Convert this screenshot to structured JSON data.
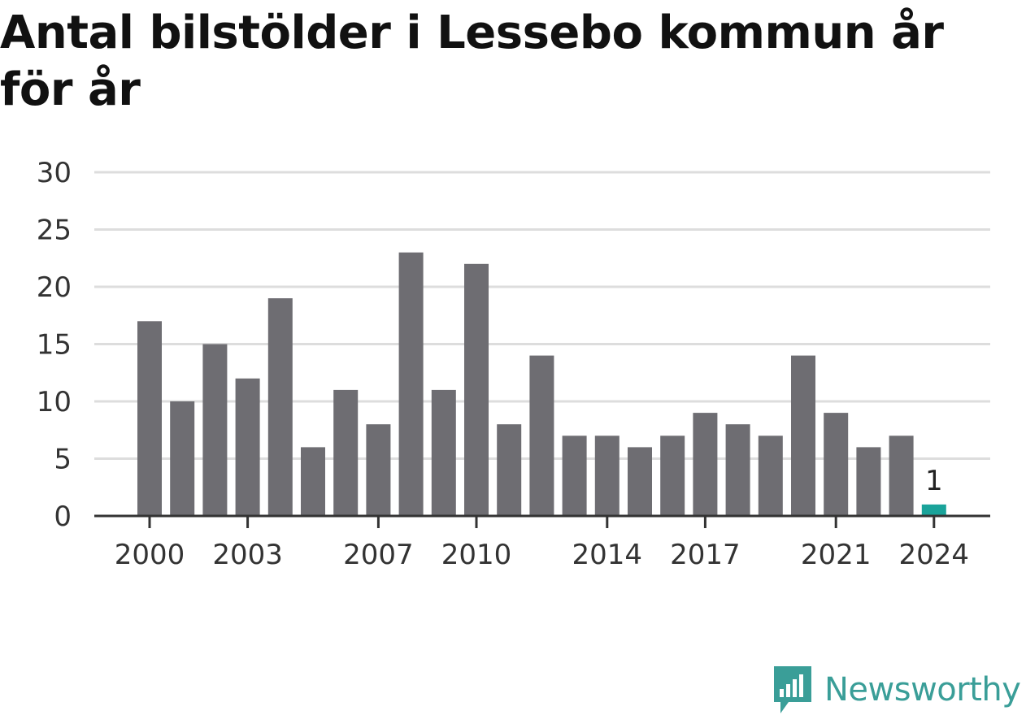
{
  "chart_data": {
    "type": "bar",
    "title": "Antal bilstölder i Lessebo kommun år för år",
    "years": [
      2000,
      2001,
      2002,
      2003,
      2004,
      2005,
      2006,
      2007,
      2008,
      2009,
      2010,
      2011,
      2012,
      2013,
      2014,
      2015,
      2016,
      2017,
      2018,
      2019,
      2020,
      2021,
      2022,
      2023,
      2024
    ],
    "values": [
      17,
      10,
      15,
      12,
      19,
      6,
      11,
      8,
      23,
      11,
      22,
      8,
      14,
      7,
      7,
      6,
      7,
      9,
      8,
      7,
      14,
      9,
      6,
      7,
      1
    ],
    "x_tick_labels": [
      "2000",
      "2003",
      "2007",
      "2010",
      "2014",
      "2017",
      "2021",
      "2024"
    ],
    "y_ticks": [
      0,
      5,
      10,
      15,
      20,
      25,
      30
    ],
    "ylim": [
      0,
      30
    ],
    "highlight": {
      "year": 2024,
      "label": "1"
    },
    "grid": true,
    "colors": {
      "bar": "#6e6d72",
      "highlight": "#1aa39a",
      "grid": "#dddddd",
      "axis": "#333333",
      "text": "#333333"
    }
  },
  "brand": {
    "name": "Newsworthy",
    "color": "#3a9e98",
    "icon": "newsworthy-logo-icon"
  }
}
